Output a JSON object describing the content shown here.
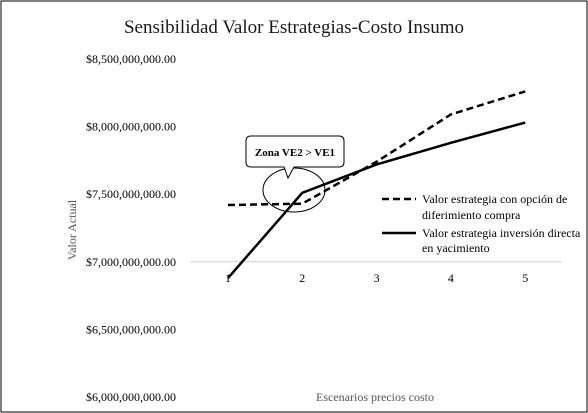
{
  "chart_data": {
    "type": "line",
    "title": "Sensibilidad Valor Estrategias-Costo Insumo",
    "xlabel": "Escenarios precios costo",
    "ylabel": "Valor Actual",
    "x": [
      1,
      2,
      3,
      4,
      5
    ],
    "x_tick_labels": [
      "1",
      "2",
      "3",
      "4",
      "5"
    ],
    "y_tick_labels": [
      "$6,000,000,000.00",
      "$6,500,000,000.00",
      "$7,000,000,000.00",
      "$7,500,000,000.00",
      "$8,000,000,000.00",
      "$8,500,000,000.00"
    ],
    "y_ticks": [
      6000000000,
      6500000000,
      7000000000,
      7500000000,
      8000000000,
      8500000000
    ],
    "ylim": [
      6000000000,
      8500000000
    ],
    "x_axis_crosses_y": 7000000000,
    "grid": false,
    "legend_position": "right",
    "series": [
      {
        "name": "Valor estrategia con opción de diferimiento compra",
        "values": [
          7420000000,
          7430000000,
          7740000000,
          8090000000,
          8260000000
        ],
        "line_style": "dashed",
        "color": "#000000"
      },
      {
        "name": "Valor estrategia inversión directa en yacimiento",
        "values": [
          6880000000,
          7510000000,
          7720000000,
          7880000000,
          8030000000
        ],
        "line_style": "solid",
        "color": "#000000"
      }
    ],
    "annotations": [
      {
        "text": "Zona VE2 > VE1",
        "style": "callout"
      }
    ]
  }
}
